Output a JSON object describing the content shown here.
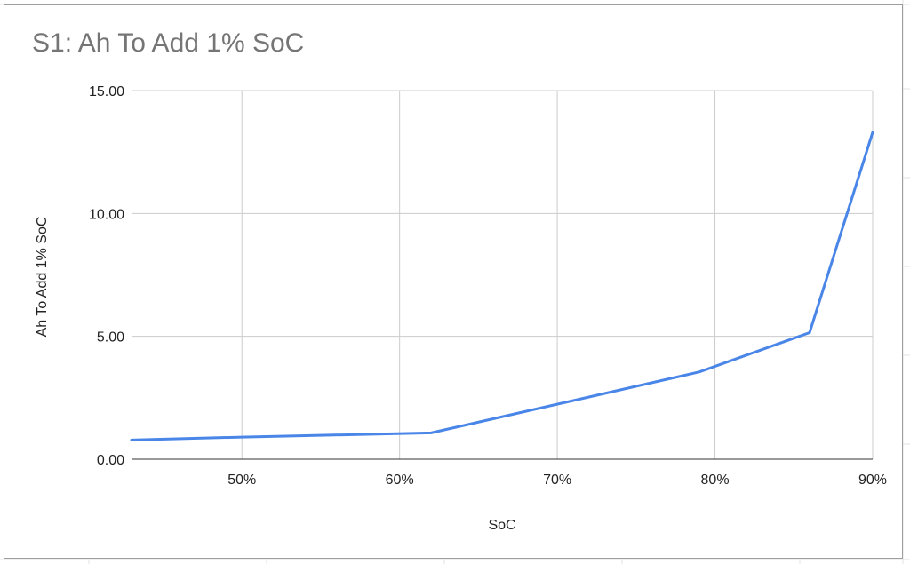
{
  "chart_data": {
    "type": "line",
    "title": "S1: Ah To Add 1% SoC",
    "xlabel": "SoC",
    "ylabel": "Ah To Add 1% SoC",
    "xlim": [
      43,
      90
    ],
    "ylim": [
      0,
      15
    ],
    "x_ticks": [
      50,
      60,
      70,
      80,
      90
    ],
    "x_tick_labels": [
      "50%",
      "60%",
      "70%",
      "80%",
      "90%"
    ],
    "y_ticks": [
      0,
      5,
      10,
      15
    ],
    "y_tick_labels": [
      "0.00",
      "5.00",
      "10.00",
      "15.00"
    ],
    "grid": true,
    "legend": "none",
    "series": [
      {
        "color": "#4a86e8",
        "x": [
          43,
          50,
          62,
          79,
          86,
          90
        ],
        "y": [
          0.78,
          0.9,
          1.07,
          3.55,
          5.15,
          13.3
        ]
      }
    ]
  }
}
